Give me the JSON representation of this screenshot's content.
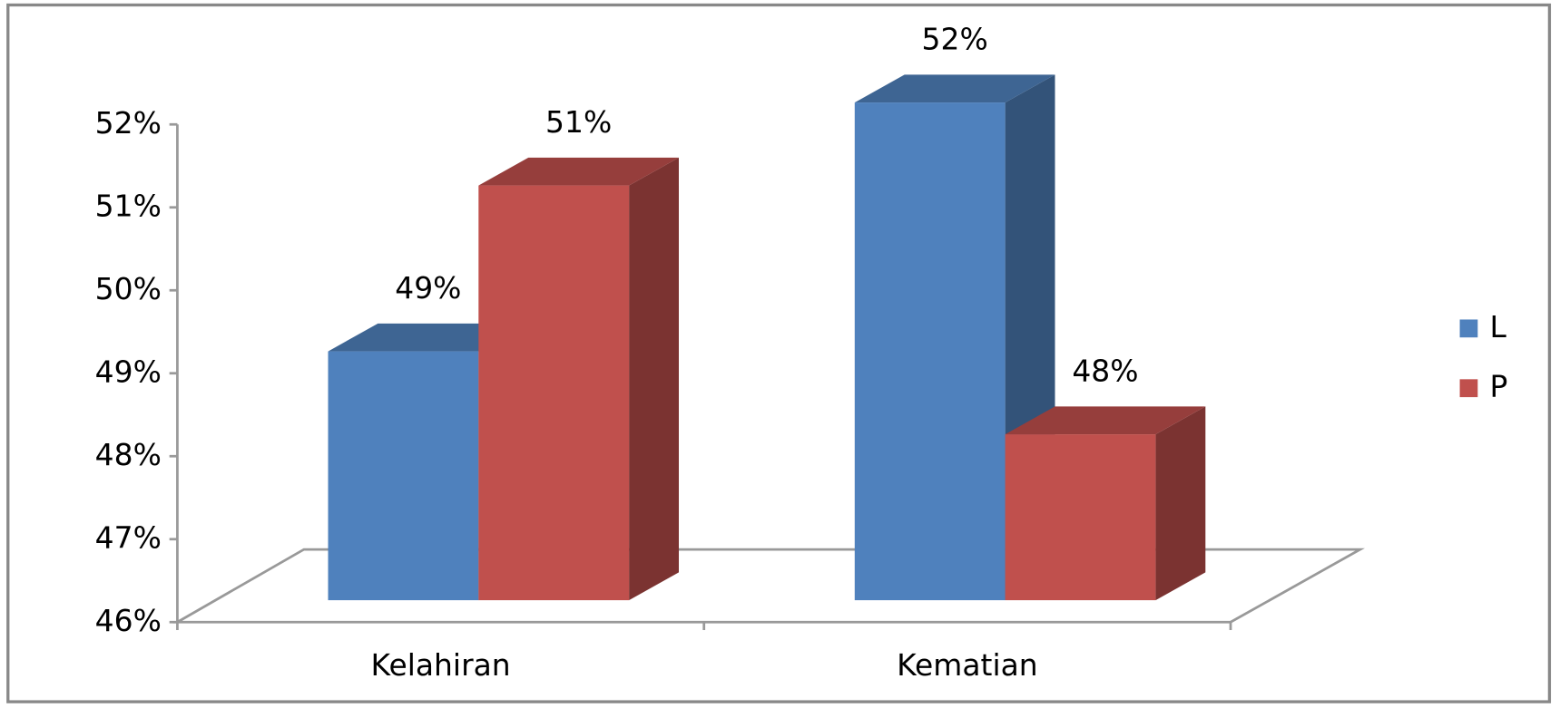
{
  "chart_data": {
    "type": "bar3d",
    "categories": [
      "Kelahiran",
      "Kematian"
    ],
    "series": [
      {
        "name": "L",
        "color": "#4f81bd",
        "values": [
          49,
          52
        ],
        "value_labels": [
          "49%",
          "52%"
        ]
      },
      {
        "name": "P",
        "color": "#c0504d",
        "values": [
          51,
          48
        ],
        "value_labels": [
          "51%",
          "48%"
        ]
      }
    ],
    "ylim": [
      46,
      52
    ],
    "yticks": [
      {
        "value": 46,
        "label": "46%"
      },
      {
        "value": 47,
        "label": "47%"
      },
      {
        "value": 48,
        "label": "48%"
      },
      {
        "value": 49,
        "label": "49%"
      },
      {
        "value": 50,
        "label": "50%"
      },
      {
        "value": 51,
        "label": "51%"
      },
      {
        "value": 52,
        "label": "52%"
      }
    ],
    "legend": "right"
  }
}
